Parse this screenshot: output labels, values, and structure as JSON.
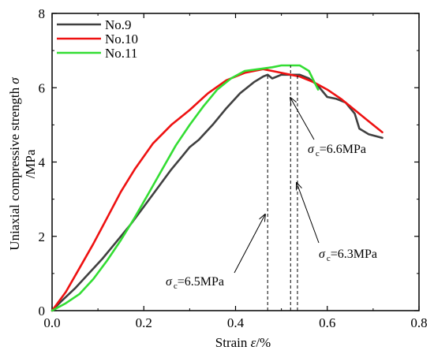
{
  "chart_data": {
    "type": "line",
    "xlabel_prefix": "Strain ",
    "xlabel_symbol": "ε",
    "xlabel_suffix": "/%",
    "ylabel_line1_prefix": "Uniaxial compressive strength ",
    "ylabel_line1_symbol": "σ",
    "ylabel_line2": "/MPa",
    "xlim": [
      0.0,
      0.8
    ],
    "ylim": [
      0,
      8
    ],
    "x_ticks": [
      "0.0",
      "0.2",
      "0.4",
      "0.6",
      "0.8"
    ],
    "y_ticks": [
      "0",
      "2",
      "4",
      "6",
      "8"
    ],
    "legend_position": "top-left",
    "series": [
      {
        "name": "No.9",
        "color": "#404040",
        "x": [
          0.0,
          0.02,
          0.05,
          0.08,
          0.11,
          0.14,
          0.17,
          0.2,
          0.23,
          0.26,
          0.28,
          0.3,
          0.32,
          0.35,
          0.38,
          0.41,
          0.44,
          0.46,
          0.47,
          0.48,
          0.5,
          0.52,
          0.54,
          0.56,
          0.58,
          0.6,
          0.62,
          0.64,
          0.66,
          0.67,
          0.69,
          0.72
        ],
        "y": [
          0.0,
          0.25,
          0.6,
          1.0,
          1.4,
          1.85,
          2.3,
          2.8,
          3.3,
          3.8,
          4.1,
          4.4,
          4.6,
          5.0,
          5.45,
          5.85,
          6.15,
          6.3,
          6.35,
          6.25,
          6.35,
          6.35,
          6.35,
          6.25,
          6.05,
          5.75,
          5.7,
          5.6,
          5.3,
          4.9,
          4.75,
          4.65
        ]
      },
      {
        "name": "No.10",
        "color": "#ee1111",
        "x": [
          0.0,
          0.03,
          0.06,
          0.09,
          0.12,
          0.15,
          0.18,
          0.22,
          0.26,
          0.3,
          0.34,
          0.38,
          0.42,
          0.46,
          0.48,
          0.5,
          0.52,
          0.54,
          0.57,
          0.6,
          0.63,
          0.66,
          0.69,
          0.72
        ],
        "y": [
          0.0,
          0.5,
          1.15,
          1.8,
          2.5,
          3.2,
          3.8,
          4.5,
          5.0,
          5.4,
          5.85,
          6.2,
          6.4,
          6.5,
          6.45,
          6.4,
          6.35,
          6.3,
          6.15,
          5.95,
          5.7,
          5.4,
          5.1,
          4.8
        ]
      },
      {
        "name": "No.11",
        "color": "#33dd33",
        "x": [
          0.0,
          0.03,
          0.06,
          0.09,
          0.12,
          0.15,
          0.18,
          0.21,
          0.24,
          0.27,
          0.3,
          0.33,
          0.36,
          0.39,
          0.42,
          0.45,
          0.48,
          0.5,
          0.52,
          0.54,
          0.56,
          0.57,
          0.58
        ],
        "y": [
          0.0,
          0.2,
          0.45,
          0.85,
          1.35,
          1.9,
          2.5,
          3.15,
          3.8,
          4.45,
          5.0,
          5.5,
          5.95,
          6.25,
          6.45,
          6.5,
          6.55,
          6.6,
          6.6,
          6.6,
          6.45,
          6.2,
          5.95
        ]
      }
    ],
    "annotations": [
      {
        "prefix": "σ",
        "sub": "c",
        "suffix": "=6.5MPa"
      },
      {
        "prefix": "σ",
        "sub": "c",
        "suffix": "=6.6MPa"
      },
      {
        "prefix": "σ",
        "sub": "c",
        "suffix": "=6.3MPa"
      }
    ],
    "peak_markers_x": [
      0.47,
      0.52,
      0.535
    ]
  }
}
